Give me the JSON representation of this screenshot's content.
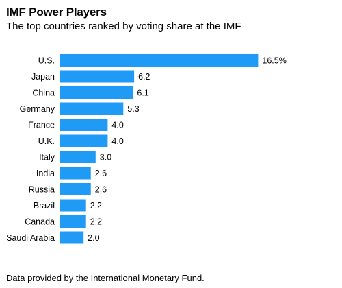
{
  "header": {
    "title": "IMF Power Players",
    "subtitle": "The top countries ranked by voting share at the IMF"
  },
  "footer": {
    "source": "Data provided by the International Monetary Fund."
  },
  "colors": {
    "bar": "#1f9bf5"
  },
  "chart_data": {
    "type": "bar",
    "orientation": "horizontal",
    "categories": [
      "U.S.",
      "Japan",
      "China",
      "Germany",
      "France",
      "U.K.",
      "Italy",
      "India",
      "Russia",
      "Brazil",
      "Canada",
      "Saudi Arabia"
    ],
    "values": [
      16.5,
      6.2,
      6.1,
      5.3,
      4.0,
      4.0,
      3.0,
      2.6,
      2.6,
      2.2,
      2.2,
      2.0
    ],
    "value_labels": [
      "16.5%",
      "6.2",
      "6.1",
      "5.3",
      "4.0",
      "4.0",
      "3.0",
      "2.6",
      "2.6",
      "2.2",
      "2.2",
      "2.0"
    ],
    "title": "IMF Power Players",
    "subtitle": "The top countries ranked by voting share at the IMF",
    "xlabel": "",
    "ylabel": "",
    "xlim": [
      0,
      16.5
    ],
    "grid": false,
    "legend": "none"
  }
}
